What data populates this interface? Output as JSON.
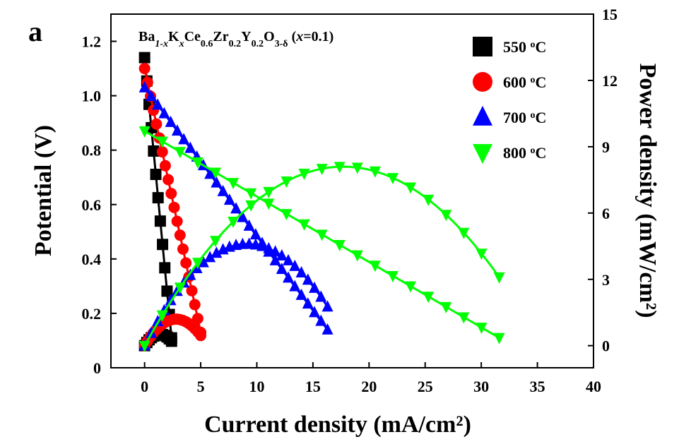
{
  "panel_label": "a",
  "composition": {
    "base": "Ba",
    "sub1": "1-x",
    "k": "K",
    "sub2": "x",
    "ce": "Ce",
    "sub3": "0.6",
    "zr": "Zr",
    "sub4": "0.2",
    "y": "Y",
    "sub5": "0.2",
    "o": "O",
    "sub6": "3-δ",
    "paren_open": " (",
    "x_var": "x",
    "value": "=0.1)"
  },
  "colors": {
    "550": "#000000",
    "600": "#ff0000",
    "700": "#0000ff",
    "800": "#00ff00"
  },
  "chart_data": {
    "type": "line",
    "title": "",
    "xlabel": "Current density (mA/cm²)",
    "ylabel": "Potential (V)",
    "y2label": "Power density (mW/cm²)",
    "xlim": [
      -3,
      40
    ],
    "ylim": [
      0,
      1.3
    ],
    "y2lim": [
      -1,
      15
    ],
    "xticks": [
      "0",
      "5",
      "10",
      "15",
      "20",
      "25",
      "30",
      "35",
      "40"
    ],
    "xtick_values": [
      0,
      5,
      10,
      15,
      20,
      25,
      30,
      35,
      40
    ],
    "yticks": [
      "0",
      "0.2",
      "0.4",
      "0.6",
      "0.8",
      "1.0",
      "1.2"
    ],
    "ytick_values": [
      0,
      0.2,
      0.4,
      0.6,
      0.8,
      1.0,
      1.2
    ],
    "y2ticks": [
      "0",
      "3",
      "6",
      "9",
      "12",
      "15"
    ],
    "y2tick_values": [
      0,
      3,
      6,
      9,
      12,
      15
    ],
    "legend_position": "top-right",
    "series": [
      {
        "name": "550 °C",
        "temp": "550",
        "sup": "o",
        "label_unit": "C",
        "marker": "square",
        "ocv": 1.14,
        "jmax": 2.4,
        "npts": 13,
        "pmax": 0.52,
        "axis": "both"
      },
      {
        "name": "600 °C",
        "temp": "600",
        "sup": "o",
        "label_unit": "C",
        "marker": "circle",
        "ocv": 1.1,
        "jmax": 5.0,
        "npts": 20,
        "pmax": 1.2,
        "axis": "both"
      },
      {
        "name": "700 °C",
        "temp": "700",
        "sup": "o",
        "label_unit": "C",
        "marker": "triangle-up",
        "ocv": 1.03,
        "jmax": 16.3,
        "npts": 29,
        "pmax": 4.6,
        "axis": "both"
      },
      {
        "name": "800 °C",
        "temp": "800",
        "sup": "o",
        "label_unit": "C",
        "marker": "triangle-down",
        "ocv": 0.87,
        "jmax": 31.6,
        "npts": 41,
        "pmax": 8.1,
        "axis": "both"
      }
    ]
  }
}
